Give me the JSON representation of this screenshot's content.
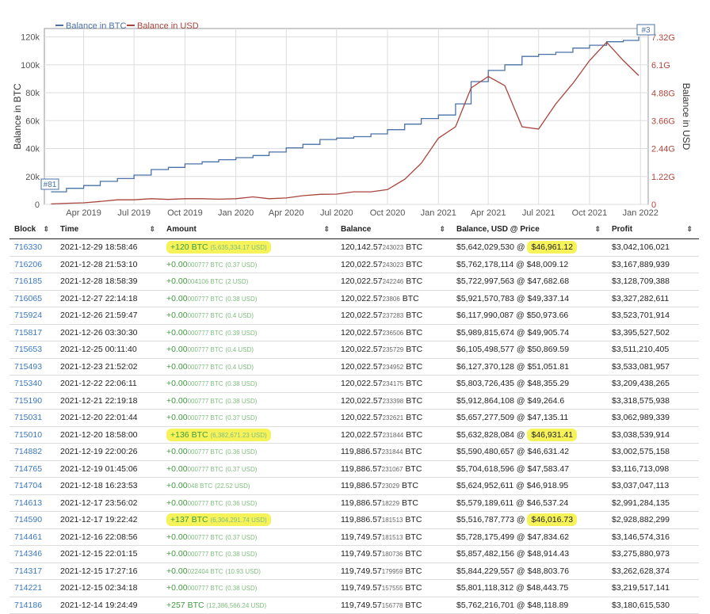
{
  "chart_data": {
    "type": "line",
    "legend": [
      "Balance in BTC",
      "Balance in USD"
    ],
    "legend_placement": "top-left",
    "ylabel_left": "Balance in BTC",
    "ylabel_right": "Balance in USD",
    "x_ticks": [
      "Apr 2019",
      "Jul 2019",
      "Oct 2019",
      "Jan 2020",
      "Apr 2020",
      "Jul 2020",
      "Oct 2020",
      "Jan 2021",
      "Apr 2021",
      "Jul 2021",
      "Oct 2021",
      "Jan 2022"
    ],
    "y_left_ticks": [
      "0",
      "20k",
      "40k",
      "60k",
      "80k",
      "100k",
      "120k"
    ],
    "y_right_ticks": [
      "0",
      "1.22G",
      "2.44G",
      "3.66G",
      "4.88G",
      "6.1G",
      "7.32G"
    ],
    "ylim_left": [
      0,
      126000
    ],
    "ylim_right": [
      0,
      7.7
    ],
    "markers": [
      {
        "label": "#81"
      },
      {
        "label": "#3"
      }
    ],
    "grid": true,
    "series": [
      {
        "name": "Balance in BTC",
        "color": "#4a72a8",
        "axis": "left",
        "points": [
          [
            "2019-02-01",
            9000
          ],
          [
            "2019-03-01",
            11500
          ],
          [
            "2019-04-01",
            13500
          ],
          [
            "2019-05-01",
            16500
          ],
          [
            "2019-06-01",
            18500
          ],
          [
            "2019-07-01",
            21000
          ],
          [
            "2019-08-01",
            25000
          ],
          [
            "2019-09-01",
            26500
          ],
          [
            "2019-10-01",
            29000
          ],
          [
            "2019-11-01",
            30500
          ],
          [
            "2019-12-01",
            32000
          ],
          [
            "2020-01-01",
            33500
          ],
          [
            "2020-02-01",
            35000
          ],
          [
            "2020-03-01",
            37500
          ],
          [
            "2020-04-01",
            40500
          ],
          [
            "2020-05-01",
            43000
          ],
          [
            "2020-06-01",
            46500
          ],
          [
            "2020-07-01",
            47500
          ],
          [
            "2020-08-01",
            48500
          ],
          [
            "2020-09-01",
            50500
          ],
          [
            "2020-10-01",
            53500
          ],
          [
            "2020-11-01",
            57500
          ],
          [
            "2020-12-01",
            61500
          ],
          [
            "2021-01-01",
            64000
          ],
          [
            "2021-02-01",
            72000
          ],
          [
            "2021-03-01",
            88000
          ],
          [
            "2021-04-01",
            96000
          ],
          [
            "2021-05-01",
            100000
          ],
          [
            "2021-06-01",
            106000
          ],
          [
            "2021-07-01",
            107500
          ],
          [
            "2021-08-01",
            109000
          ],
          [
            "2021-09-01",
            112000
          ],
          [
            "2021-10-01",
            114000
          ],
          [
            "2021-11-01",
            116500
          ],
          [
            "2021-12-01",
            117500
          ],
          [
            "2021-12-29",
            120142
          ]
        ]
      },
      {
        "name": "Balance in USD",
        "color": "#a9443d",
        "axis": "right",
        "points": [
          [
            "2019-02-01",
            0.02
          ],
          [
            "2019-03-01",
            0.05
          ],
          [
            "2019-04-01",
            0.07
          ],
          [
            "2019-05-01",
            0.13
          ],
          [
            "2019-06-01",
            0.2
          ],
          [
            "2019-07-01",
            0.2
          ],
          [
            "2019-08-01",
            0.25
          ],
          [
            "2019-09-01",
            0.22
          ],
          [
            "2019-10-01",
            0.25
          ],
          [
            "2019-11-01",
            0.25
          ],
          [
            "2019-12-01",
            0.23
          ],
          [
            "2020-01-01",
            0.25
          ],
          [
            "2020-02-01",
            0.33
          ],
          [
            "2020-03-01",
            0.25
          ],
          [
            "2020-04-01",
            0.28
          ],
          [
            "2020-05-01",
            0.38
          ],
          [
            "2020-06-01",
            0.44
          ],
          [
            "2020-07-01",
            0.45
          ],
          [
            "2020-08-01",
            0.55
          ],
          [
            "2020-09-01",
            0.55
          ],
          [
            "2020-10-01",
            0.65
          ],
          [
            "2020-11-01",
            1.1
          ],
          [
            "2020-12-01",
            1.8
          ],
          [
            "2021-01-01",
            2.9
          ],
          [
            "2021-02-01",
            3.4
          ],
          [
            "2021-03-01",
            5.1
          ],
          [
            "2021-04-01",
            5.6
          ],
          [
            "2021-05-01",
            5.2
          ],
          [
            "2021-06-01",
            3.4
          ],
          [
            "2021-07-01",
            3.3
          ],
          [
            "2021-08-01",
            4.4
          ],
          [
            "2021-09-01",
            5.3
          ],
          [
            "2021-10-01",
            6.3
          ],
          [
            "2021-11-01",
            7.1
          ],
          [
            "2021-12-01",
            6.3
          ],
          [
            "2021-12-29",
            5.64
          ]
        ]
      }
    ]
  },
  "table": {
    "headers": [
      "Block",
      "Time",
      "Amount",
      "Balance",
      "Balance, USD @ Price",
      "Profit"
    ],
    "rows": [
      {
        "block": "716330",
        "time": "2021-12-29 18:58:46",
        "amount": "+120 BTC",
        "amount_frac": "",
        "amount_usd": "(5,635,334.17 USD)",
        "balance_int": "120,142.57",
        "balance_frac": "243023",
        "balance_unit": "BTC",
        "usd": "$5,642,029,530 @ ",
        "price": "$46,961.12",
        "profit": "$3,042,106,021",
        "hl_amount": true,
        "hl_price": true
      },
      {
        "block": "716206",
        "time": "2021-12-28 21:53:10",
        "amount": "+0.00",
        "amount_frac": "000777 BTC",
        "amount_usd": "(0.37 USD)",
        "balance_int": "120,022.57",
        "balance_frac": "243023",
        "balance_unit": "BTC",
        "usd": "$5,762,178,114 @ ",
        "price": "$48,009.12",
        "profit": "$3,167,889,939",
        "hl_amount": false,
        "hl_price": false
      },
      {
        "block": "716185",
        "time": "2021-12-28 18:58:39",
        "amount": "+0.00",
        "amount_frac": "004106 BTC",
        "amount_usd": "(2 USD)",
        "balance_int": "120,022.57",
        "balance_frac": "242246",
        "balance_unit": "BTC",
        "usd": "$5,722,997,563 @ ",
        "price": "$47,682.68",
        "profit": "$3,128,709,388",
        "hl_amount": false,
        "hl_price": false
      },
      {
        "block": "716065",
        "time": "2021-12-27 22:14:18",
        "amount": "+0.00",
        "amount_frac": "000777 BTC",
        "amount_usd": "(0.38 USD)",
        "balance_int": "120,022.57",
        "balance_frac": "23806",
        "balance_unit": "BTC",
        "usd": "$5,921,570,783 @ ",
        "price": "$49,337.14",
        "profit": "$3,327,282,611",
        "hl_amount": false,
        "hl_price": false
      },
      {
        "block": "715924",
        "time": "2021-12-26 21:59:47",
        "amount": "+0.00",
        "amount_frac": "000777 BTC",
        "amount_usd": "(0.4 USD)",
        "balance_int": "120,022.57",
        "balance_frac": "237283",
        "balance_unit": "BTC",
        "usd": "$6,117,990,087 @ ",
        "price": "$50,973.66",
        "profit": "$3,523,701,914",
        "hl_amount": false,
        "hl_price": false
      },
      {
        "block": "715817",
        "time": "2021-12-26 03:30:30",
        "amount": "+0.00",
        "amount_frac": "000777 BTC",
        "amount_usd": "(0.39 USD)",
        "balance_int": "120,022.57",
        "balance_frac": "236506",
        "balance_unit": "BTC",
        "usd": "$5,989,815,674 @ ",
        "price": "$49,905.74",
        "profit": "$3,395,527,502",
        "hl_amount": false,
        "hl_price": false
      },
      {
        "block": "715653",
        "time": "2021-12-25 00:11:40",
        "amount": "+0.00",
        "amount_frac": "000777 BTC",
        "amount_usd": "(0.4 USD)",
        "balance_int": "120,022.57",
        "balance_frac": "235729",
        "balance_unit": "BTC",
        "usd": "$6,105,498,577 @ ",
        "price": "$50,869.59",
        "profit": "$3,511,210,405",
        "hl_amount": false,
        "hl_price": false
      },
      {
        "block": "715493",
        "time": "2021-12-23 21:52:02",
        "amount": "+0.00",
        "amount_frac": "000777 BTC",
        "amount_usd": "(0.4 USD)",
        "balance_int": "120,022.57",
        "balance_frac": "234952",
        "balance_unit": "BTC",
        "usd": "$6,127,370,128 @ ",
        "price": "$51,051.81",
        "profit": "$3,533,081,957",
        "hl_amount": false,
        "hl_price": false
      },
      {
        "block": "715340",
        "time": "2021-12-22 22:06:11",
        "amount": "+0.00",
        "amount_frac": "000777 BTC",
        "amount_usd": "(0.38 USD)",
        "balance_int": "120,022.57",
        "balance_frac": "234175",
        "balance_unit": "BTC",
        "usd": "$5,803,726,435 @ ",
        "price": "$48,355.29",
        "profit": "$3,209,438,265",
        "hl_amount": false,
        "hl_price": false
      },
      {
        "block": "715190",
        "time": "2021-12-21 22:19:18",
        "amount": "+0.00",
        "amount_frac": "000777 BTC",
        "amount_usd": "(0.38 USD)",
        "balance_int": "120,022.57",
        "balance_frac": "233398",
        "balance_unit": "BTC",
        "usd": "$5,912,864,108 @ ",
        "price": "$49,264.6",
        "profit": "$3,318,575,938",
        "hl_amount": false,
        "hl_price": false
      },
      {
        "block": "715031",
        "time": "2021-12-20 22:01:44",
        "amount": "+0.00",
        "amount_frac": "000777 BTC",
        "amount_usd": "(0.37 USD)",
        "balance_int": "120,022.57",
        "balance_frac": "232621",
        "balance_unit": "BTC",
        "usd": "$5,657,277,509 @ ",
        "price": "$47,135.11",
        "profit": "$3,062,989,339",
        "hl_amount": false,
        "hl_price": false
      },
      {
        "block": "715010",
        "time": "2021-12-20 18:58:00",
        "amount": "+136 BTC",
        "amount_frac": "",
        "amount_usd": "(6,382,671.23 USD)",
        "balance_int": "120,022.57",
        "balance_frac": "231844",
        "balance_unit": "BTC",
        "usd": "$5,632,828,084 @ ",
        "price": "$46,931.41",
        "profit": "$3,038,539,914",
        "hl_amount": true,
        "hl_price": true
      },
      {
        "block": "714882",
        "time": "2021-12-19 22:00:26",
        "amount": "+0.00",
        "amount_frac": "000777 BTC",
        "amount_usd": "(0.36 USD)",
        "balance_int": "119,886.57",
        "balance_frac": "231844",
        "balance_unit": "BTC",
        "usd": "$5,590,480,657 @ ",
        "price": "$46,631.42",
        "profit": "$3,002,575,158",
        "hl_amount": false,
        "hl_price": false
      },
      {
        "block": "714765",
        "time": "2021-12-19 01:45:06",
        "amount": "+0.00",
        "amount_frac": "000777 BTC",
        "amount_usd": "(0.37 USD)",
        "balance_int": "119,886.57",
        "balance_frac": "231067",
        "balance_unit": "BTC",
        "usd": "$5,704,618,596 @ ",
        "price": "$47,583.47",
        "profit": "$3,116,713,098",
        "hl_amount": false,
        "hl_price": false
      },
      {
        "block": "714704",
        "time": "2021-12-18 16:23:53",
        "amount": "+0.00",
        "amount_frac": "048 BTC",
        "amount_usd": "(22.52 USD)",
        "balance_int": "119,886.57",
        "balance_frac": "23029",
        "balance_unit": "BTC",
        "usd": "$5,624,952,611 @ ",
        "price": "$46,918.95",
        "profit": "$3,037,047,113",
        "hl_amount": false,
        "hl_price": false
      },
      {
        "block": "714613",
        "time": "2021-12-17 23:56:02",
        "amount": "+0.00",
        "amount_frac": "000777 BTC",
        "amount_usd": "(0.36 USD)",
        "balance_int": "119,886.57",
        "balance_frac": "18229",
        "balance_unit": "BTC",
        "usd": "$5,579,189,611 @ ",
        "price": "$46,537.24",
        "profit": "$2,991,284,135",
        "hl_amount": false,
        "hl_price": false
      },
      {
        "block": "714590",
        "time": "2021-12-17 19:22:42",
        "amount": "+137 BTC",
        "amount_frac": "",
        "amount_usd": "(6,304,291.74 USD)",
        "balance_int": "119,886.57",
        "balance_frac": "181513",
        "balance_unit": "BTC",
        "usd": "$5,516,787,773 @ ",
        "price": "$46,016.73",
        "profit": "$2,928,882,299",
        "hl_amount": true,
        "hl_price": true
      },
      {
        "block": "714461",
        "time": "2021-12-16 22:08:56",
        "amount": "+0.00",
        "amount_frac": "000777 BTC",
        "amount_usd": "(0.37 USD)",
        "balance_int": "119,749.57",
        "balance_frac": "181513",
        "balance_unit": "BTC",
        "usd": "$5,728,175,499 @ ",
        "price": "$47,834.62",
        "profit": "$3,146,574,316",
        "hl_amount": false,
        "hl_price": false
      },
      {
        "block": "714346",
        "time": "2021-12-15 22:01:15",
        "amount": "+0.00",
        "amount_frac": "000777 BTC",
        "amount_usd": "(0.38 USD)",
        "balance_int": "119,749.57",
        "balance_frac": "180736",
        "balance_unit": "BTC",
        "usd": "$5,857,482,156 @ ",
        "price": "$48,914.43",
        "profit": "$3,275,880,973",
        "hl_amount": false,
        "hl_price": false
      },
      {
        "block": "714317",
        "time": "2021-12-15 17:27:16",
        "amount": "+0.00",
        "amount_frac": "022404 BTC",
        "amount_usd": "(10.93 USD)",
        "balance_int": "119,749.57",
        "balance_frac": "179959",
        "balance_unit": "BTC",
        "usd": "$5,844,229,557 @ ",
        "price": "$48,803.76",
        "profit": "$3,262,628,374",
        "hl_amount": false,
        "hl_price": false
      },
      {
        "block": "714221",
        "time": "2021-12-15 02:34:18",
        "amount": "+0.00",
        "amount_frac": "000777 BTC",
        "amount_usd": "(0.38 USD)",
        "balance_int": "119,749.57",
        "balance_frac": "157555",
        "balance_unit": "BTC",
        "usd": "$5,801,118,312 @ ",
        "price": "$48,443.75",
        "profit": "$3,219,517,141",
        "hl_amount": false,
        "hl_price": false
      },
      {
        "block": "714186",
        "time": "2021-12-14 19:24:49",
        "amount": "+257 BTC",
        "amount_frac": "",
        "amount_usd": "(12,386,566.24 USD)",
        "balance_int": "119,749.57",
        "balance_frac": "156778",
        "balance_unit": "BTC",
        "usd": "$5,762,216,701 @ ",
        "price": "$48,118.89",
        "profit": "$3,180,615,530",
        "hl_amount": false,
        "hl_price": false
      }
    ]
  },
  "colors": {
    "btc_line": "#4a72a8",
    "usd_line": "#a9443d",
    "highlight": "#f6f35a",
    "link": "#3a78c2",
    "amount": "#3f9a3f"
  }
}
